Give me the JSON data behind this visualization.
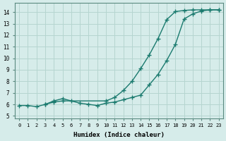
{
  "xlabel": "Humidex (Indice chaleur)",
  "bg_color": "#d6ecea",
  "grid_color": "#b5d5d0",
  "line_color": "#1a7a6e",
  "xlim": [
    -0.5,
    23.5
  ],
  "ylim": [
    4.8,
    14.8
  ],
  "xticks": [
    0,
    1,
    2,
    3,
    4,
    5,
    6,
    7,
    8,
    9,
    10,
    11,
    12,
    13,
    14,
    15,
    16,
    17,
    18,
    19,
    20,
    21,
    22,
    23
  ],
  "yticks": [
    5,
    6,
    7,
    8,
    9,
    10,
    11,
    12,
    13,
    14
  ],
  "line1_x": [
    0,
    1,
    2,
    3,
    4,
    5,
    6,
    7,
    8,
    9,
    10,
    11,
    12,
    13,
    14,
    15,
    16,
    17,
    18,
    19,
    20,
    21,
    22,
    23
  ],
  "line1_y": [
    5.9,
    5.9,
    5.8,
    6.0,
    6.3,
    6.5,
    6.3,
    6.1,
    6.0,
    5.9,
    6.1,
    6.2,
    6.4,
    6.6,
    6.8,
    7.7,
    8.6,
    9.8,
    11.2,
    13.4,
    13.85,
    14.1,
    14.2,
    14.2
  ],
  "line2_x": [
    3,
    4,
    5,
    10,
    11,
    12,
    13,
    14,
    15,
    16,
    17,
    18,
    19,
    20,
    21,
    22,
    23
  ],
  "line2_y": [
    6.0,
    6.2,
    6.3,
    6.3,
    6.6,
    7.2,
    8.0,
    9.1,
    10.3,
    11.7,
    13.35,
    14.05,
    14.15,
    14.2,
    14.2,
    14.2,
    14.2
  ]
}
